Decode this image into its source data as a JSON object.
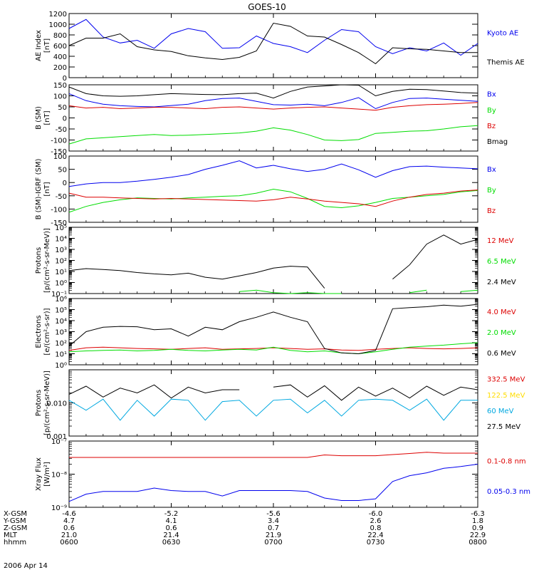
{
  "title": "GOES-10",
  "date_label": "2006 Apr 14",
  "colors": {
    "black": "#000000",
    "blue": "#0000ee",
    "green": "#00dd00",
    "red": "#dd0000",
    "yellow": "#ffdd00",
    "cyan": "#00a8e0",
    "frame": "#000000"
  },
  "chart_data": [
    {
      "type": "line",
      "panel": 1,
      "ylabel": [
        "AE Index",
        "[nT]"
      ],
      "yscale": "linear",
      "ylim": [
        0,
        1200
      ],
      "yticks": [
        0,
        200,
        400,
        600,
        800,
        1000,
        1200
      ],
      "ytick_labels": [
        "0",
        "200",
        "400",
        "600",
        "800",
        "1000",
        "1200"
      ],
      "x": [
        0,
        5,
        10,
        15,
        20,
        25,
        30,
        35,
        40,
        45,
        50,
        55,
        60,
        65,
        70,
        75,
        80,
        85,
        90,
        95,
        100,
        105,
        110,
        115,
        120
      ],
      "series": [
        {
          "name": "Kyoto AE",
          "color": "blue",
          "values": [
            920,
            1090,
            760,
            650,
            700,
            550,
            820,
            920,
            860,
            550,
            560,
            780,
            640,
            580,
            470,
            700,
            900,
            860,
            580,
            450,
            560,
            500,
            650,
            420,
            640
          ]
        },
        {
          "name": "Themis AE",
          "color": "black",
          "values": [
            600,
            740,
            740,
            820,
            580,
            520,
            490,
            410,
            370,
            340,
            380,
            500,
            1020,
            960,
            780,
            760,
            620,
            470,
            260,
            560,
            540,
            530,
            500,
            470,
            470
          ]
        }
      ]
    },
    {
      "type": "line",
      "panel": 2,
      "ylabel": [
        "B (SM)",
        "[nT]"
      ],
      "yscale": "linear",
      "ylim": [
        -150,
        150
      ],
      "yticks": [
        -150,
        -100,
        -50,
        0,
        50,
        100,
        150
      ],
      "ytick_labels": [
        "-150",
        "-100",
        "-50",
        "0",
        "50",
        "100",
        "150"
      ],
      "x": [
        0,
        5,
        10,
        15,
        20,
        25,
        30,
        35,
        40,
        45,
        50,
        55,
        60,
        65,
        70,
        75,
        80,
        85,
        90,
        95,
        100,
        105,
        110,
        115,
        120
      ],
      "series": [
        {
          "name": "Bx",
          "color": "blue",
          "values": [
            110,
            78,
            62,
            55,
            52,
            50,
            56,
            62,
            78,
            88,
            90,
            75,
            60,
            58,
            62,
            55,
            70,
            92,
            42,
            70,
            88,
            90,
            85,
            80,
            75
          ]
        },
        {
          "name": "By",
          "color": "green",
          "values": [
            -118,
            -95,
            -90,
            -85,
            -80,
            -75,
            -80,
            -78,
            -75,
            -72,
            -68,
            -60,
            -45,
            -55,
            -75,
            -100,
            -103,
            -98,
            -70,
            -65,
            -60,
            -58,
            -50,
            -40,
            -35
          ]
        },
        {
          "name": "Bz",
          "color": "red",
          "values": [
            55,
            45,
            48,
            42,
            45,
            48,
            48,
            45,
            42,
            48,
            50,
            45,
            40,
            45,
            48,
            50,
            45,
            40,
            35,
            48,
            55,
            60,
            62,
            65,
            70
          ]
        },
        {
          "name": "Bmag",
          "color": "black",
          "values": [
            140,
            110,
            100,
            98,
            100,
            105,
            110,
            108,
            106,
            105,
            110,
            112,
            90,
            120,
            140,
            145,
            150,
            148,
            100,
            120,
            130,
            128,
            122,
            115,
            112
          ]
        }
      ]
    },
    {
      "type": "line",
      "panel": 3,
      "ylabel": [
        "B (SM)-IGRF (SM)",
        "[nT]"
      ],
      "yscale": "linear",
      "ylim": [
        -150,
        100
      ],
      "yticks": [
        -150,
        -100,
        -50,
        0,
        50,
        100
      ],
      "ytick_labels": [
        "-150",
        "-100",
        "-50",
        "0",
        "50",
        "100"
      ],
      "x": [
        0,
        5,
        10,
        15,
        20,
        25,
        30,
        35,
        40,
        45,
        50,
        55,
        60,
        65,
        70,
        75,
        80,
        85,
        90,
        95,
        100,
        105,
        110,
        115,
        120
      ],
      "series": [
        {
          "name": "Bx",
          "color": "blue",
          "values": [
            -15,
            -5,
            0,
            0,
            5,
            12,
            20,
            30,
            50,
            65,
            82,
            55,
            65,
            52,
            42,
            50,
            70,
            48,
            20,
            45,
            60,
            62,
            58,
            55,
            52
          ]
        },
        {
          "name": "By",
          "color": "green",
          "values": [
            -112,
            -90,
            -75,
            -65,
            -58,
            -60,
            -62,
            -58,
            -55,
            -52,
            -50,
            -40,
            -25,
            -35,
            -60,
            -90,
            -95,
            -88,
            -75,
            -60,
            -55,
            -50,
            -45,
            -35,
            -30
          ]
        },
        {
          "name": "Bz",
          "color": "red",
          "values": [
            -40,
            -55,
            -55,
            -58,
            -60,
            -62,
            -60,
            -62,
            -64,
            -66,
            -68,
            -70,
            -65,
            -55,
            -62,
            -70,
            -75,
            -80,
            -90,
            -70,
            -55,
            -45,
            -40,
            -32,
            -28
          ]
        }
      ]
    },
    {
      "type": "line",
      "panel": 4,
      "ylabel": [
        "Protons",
        "[p/(cm²-s-sr-MeV)]"
      ],
      "yscale": "log",
      "ylim": [
        0.1,
        100000
      ],
      "yticks": [
        0.1,
        1,
        10,
        100,
        1000,
        10000,
        100000
      ],
      "ytick_labels": [
        "10⁻¹",
        "10⁰",
        "10¹",
        "10²",
        "10³",
        "10⁴",
        "10⁵"
      ],
      "x": [
        0,
        5,
        10,
        15,
        20,
        25,
        30,
        35,
        40,
        45,
        50,
        55,
        60,
        65,
        70,
        75,
        80,
        85,
        90,
        95,
        100,
        105,
        110,
        115,
        120
      ],
      "series": [
        {
          "name": "12 MeV",
          "color": "red",
          "values": [
            null,
            null,
            null,
            null,
            null,
            null,
            null,
            null,
            null,
            null,
            null,
            null,
            null,
            null,
            null,
            null,
            null,
            null,
            null,
            null,
            null,
            null,
            null,
            null,
            null
          ]
        },
        {
          "name": "6.5 MeV",
          "color": "green",
          "values": [
            0.15,
            null,
            null,
            null,
            null,
            0.2,
            null,
            null,
            null,
            null,
            0.15,
            0.2,
            0.12,
            0.1,
            0.12,
            0.1,
            0.1,
            null,
            null,
            null,
            0.12,
            0.2,
            null,
            0.15,
            0.2
          ]
        },
        {
          "name": "2.4 MeV",
          "color": "black",
          "values": [
            12,
            18,
            15,
            12,
            8,
            6,
            5,
            7,
            3,
            2,
            4,
            8,
            20,
            30,
            25,
            0.3,
            null,
            null,
            null,
            2,
            40,
            3000,
            20000,
            3000,
            8000
          ]
        }
      ]
    },
    {
      "type": "line",
      "panel": 5,
      "ylabel": [
        "Electrons",
        "[e/(cm²-s-sr)]"
      ],
      "yscale": "log",
      "ylim": [
        1,
        1000000
      ],
      "yticks": [
        1,
        10,
        100,
        1000,
        10000,
        100000,
        1000000
      ],
      "ytick_labels": [
        "10⁰",
        "10¹",
        "10²",
        "10³",
        "10⁴",
        "10⁵",
        "10⁶"
      ],
      "x": [
        0,
        5,
        10,
        15,
        20,
        25,
        30,
        35,
        40,
        45,
        50,
        55,
        60,
        65,
        70,
        75,
        80,
        85,
        90,
        95,
        100,
        105,
        110,
        115,
        120
      ],
      "series": [
        {
          "name": "4.0 MeV",
          "color": "red",
          "values": [
            20,
            35,
            40,
            35,
            30,
            28,
            25,
            30,
            35,
            25,
            28,
            30,
            35,
            30,
            25,
            28,
            22,
            20,
            25,
            30,
            35,
            30,
            28,
            30,
            35
          ]
        },
        {
          "name": "2.0 MeV",
          "color": "green",
          "values": [
            15,
            18,
            20,
            22,
            18,
            20,
            25,
            20,
            18,
            22,
            25,
            22,
            40,
            20,
            15,
            18,
            12,
            10,
            15,
            25,
            40,
            50,
            60,
            80,
            100
          ]
        },
        {
          "name": "0.6 MeV",
          "color": "black",
          "values": [
            50,
            1000,
            2500,
            3000,
            2800,
            1500,
            1800,
            400,
            2500,
            1500,
            8000,
            20000,
            60000,
            20000,
            8000,
            30,
            12,
            10,
            20,
            120000,
            150000,
            180000,
            250000,
            200000,
            300000
          ]
        }
      ]
    },
    {
      "type": "line",
      "panel": 6,
      "ylabel": [
        "Protons",
        "[p/(cm²-s-sr-MeV)]"
      ],
      "yscale": "log",
      "ylim": [
        0.001,
        0.1
      ],
      "yticks": [
        0.001,
        0.01
      ],
      "ytick_labels": [
        "0.001",
        "0.010"
      ],
      "x": [
        0,
        5,
        10,
        15,
        20,
        25,
        30,
        35,
        40,
        45,
        50,
        55,
        60,
        65,
        70,
        75,
        80,
        85,
        90,
        95,
        100,
        105,
        110,
        115,
        120
      ],
      "series": [
        {
          "name": "332.5 MeV",
          "color": "red",
          "values": [
            null,
            null,
            null,
            null,
            null,
            null,
            null,
            null,
            null,
            null,
            null,
            null,
            null,
            null,
            null,
            null,
            null,
            null,
            null,
            null,
            null,
            null,
            null,
            null,
            null
          ]
        },
        {
          "name": "122.5 MeV",
          "color": "yellow",
          "values": [
            null,
            null,
            null,
            null,
            null,
            null,
            null,
            null,
            null,
            null,
            null,
            null,
            null,
            null,
            null,
            null,
            null,
            null,
            null,
            null,
            null,
            null,
            null,
            null,
            null
          ]
        },
        {
          "name": "60 MeV",
          "color": "cyan",
          "values": [
            0.012,
            0.006,
            0.013,
            0.003,
            0.012,
            0.004,
            0.013,
            0.012,
            0.003,
            0.011,
            0.012,
            0.004,
            0.012,
            0.013,
            0.005,
            0.012,
            0.004,
            0.012,
            0.013,
            0.012,
            0.006,
            0.013,
            0.003,
            0.012,
            0.012
          ]
        },
        {
          "name": "27.5 MeV",
          "color": "black",
          "values": [
            0.018,
            0.032,
            0.015,
            0.028,
            0.02,
            0.035,
            0.014,
            0.03,
            0.02,
            0.025,
            0.025,
            null,
            0.03,
            0.035,
            0.015,
            0.033,
            0.012,
            0.03,
            0.016,
            0.028,
            0.014,
            0.032,
            0.017,
            0.03,
            0.025
          ]
        }
      ]
    },
    {
      "type": "line",
      "panel": 7,
      "ylabel": [
        "Xray Flux",
        "[W/m²]"
      ],
      "yscale": "log",
      "ylim": [
        1e-09,
        1e-07
      ],
      "yticks": [
        1e-09,
        1e-08,
        1e-07
      ],
      "ytick_labels": [
        "10⁻⁹",
        "10⁻⁸",
        "10⁻⁷"
      ],
      "x": [
        0,
        5,
        10,
        15,
        20,
        25,
        30,
        35,
        40,
        45,
        50,
        55,
        60,
        65,
        70,
        75,
        80,
        85,
        90,
        95,
        100,
        105,
        110,
        115,
        120
      ],
      "series": [
        {
          "name": "0.1-0.8 nm",
          "color": "red",
          "values": [
            3.2e-08,
            3.2e-08,
            3.2e-08,
            3.2e-08,
            3.2e-08,
            3.2e-08,
            3.2e-08,
            3.2e-08,
            3.2e-08,
            3.2e-08,
            3.2e-08,
            3.2e-08,
            3.2e-08,
            3.2e-08,
            3.2e-08,
            3.8e-08,
            3.6e-08,
            3.6e-08,
            3.6e-08,
            3.9e-08,
            4.2e-08,
            4.6e-08,
            4.3e-08,
            4.3e-08,
            4.3e-08
          ]
        },
        {
          "name": "0.05-0.3 nm",
          "color": "blue",
          "values": [
            1.5e-09,
            2.5e-09,
            3e-09,
            3e-09,
            3e-09,
            3.8e-09,
            3.2e-09,
            3e-09,
            3e-09,
            2.2e-09,
            3.2e-09,
            3.2e-09,
            3.2e-09,
            3.2e-09,
            3e-09,
            1.9e-09,
            1.6e-09,
            1.6e-09,
            1.8e-09,
            6e-09,
            9e-09,
            1.1e-08,
            1.5e-08,
            1.7e-08,
            2e-08
          ]
        }
      ]
    }
  ],
  "x_axis": {
    "row_labels": [
      "X-GSM",
      "Y-GSM",
      "Z-GSM",
      "MLT",
      "hhmm"
    ],
    "columns": [
      {
        "x": 0,
        "values": [
          "-4.6",
          "4.7",
          "0.6",
          "21.0",
          "0600"
        ]
      },
      {
        "x": 30,
        "values": [
          "-5.2",
          "4.1",
          "0.6",
          "21.4",
          "0630"
        ]
      },
      {
        "x": 60,
        "values": [
          "-5.6",
          "3.4",
          "0.7",
          "21.9",
          "0700"
        ]
      },
      {
        "x": 90,
        "values": [
          "-6.0",
          "2.6",
          "0.8",
          "22.4",
          "0730"
        ]
      },
      {
        "x": 120,
        "values": [
          "-6.3",
          "1.8",
          "0.9",
          "22.9",
          "0800"
        ]
      }
    ],
    "xlim": [
      0,
      120
    ]
  }
}
